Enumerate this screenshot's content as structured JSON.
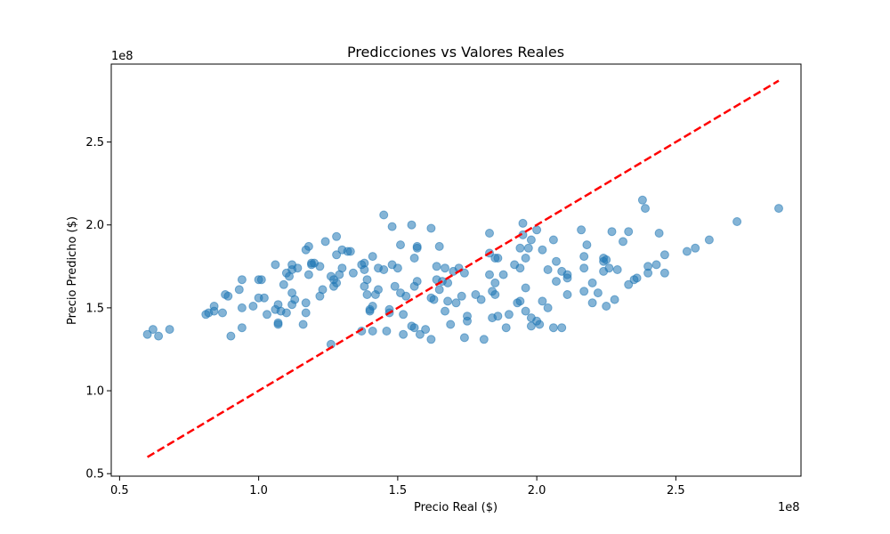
{
  "chart_data": {
    "type": "scatter",
    "title": "Predicciones vs Valores Reales",
    "xlabel": "Precio Real ($)",
    "ylabel": "Precio Predicho ($)",
    "x_offset_label": "1e8",
    "y_offset_label": "1e8",
    "xlim": [
      0.47,
      2.95
    ],
    "ylim": [
      0.485,
      2.97
    ],
    "xticks": [
      0.5,
      1.0,
      1.5,
      2.0,
      2.5
    ],
    "xtick_labels": [
      "0.5",
      "1.0",
      "1.5",
      "2.0",
      "2.5"
    ],
    "yticks": [
      0.5,
      1.0,
      1.5,
      2.0,
      2.5
    ],
    "ytick_labels": [
      "0.5",
      "1.0",
      "1.5",
      "2.0",
      "2.5"
    ],
    "grid": false,
    "legend": "none",
    "point_color": "#1f77b4",
    "line_color": "#ff0000",
    "reference_line": {
      "x": [
        0.6,
        2.87
      ],
      "y": [
        0.6,
        2.87
      ],
      "style": "dashed"
    },
    "points": [
      [
        0.6,
        1.34
      ],
      [
        0.62,
        1.37
      ],
      [
        0.64,
        1.33
      ],
      [
        0.68,
        1.37
      ],
      [
        0.81,
        1.46
      ],
      [
        0.82,
        1.47
      ],
      [
        0.84,
        1.48
      ],
      [
        0.84,
        1.51
      ],
      [
        0.87,
        1.47
      ],
      [
        0.88,
        1.58
      ],
      [
        0.89,
        1.57
      ],
      [
        0.9,
        1.33
      ],
      [
        0.93,
        1.61
      ],
      [
        0.94,
        1.67
      ],
      [
        0.94,
        1.5
      ],
      [
        0.94,
        1.38
      ],
      [
        0.98,
        1.51
      ],
      [
        1.0,
        1.67
      ],
      [
        1.0,
        1.56
      ],
      [
        1.01,
        1.67
      ],
      [
        1.02,
        1.56
      ],
      [
        1.03,
        1.46
      ],
      [
        1.06,
        1.76
      ],
      [
        1.06,
        1.49
      ],
      [
        1.07,
        1.41
      ],
      [
        1.07,
        1.4
      ],
      [
        1.07,
        1.52
      ],
      [
        1.08,
        1.48
      ],
      [
        1.09,
        1.64
      ],
      [
        1.1,
        1.71
      ],
      [
        1.1,
        1.47
      ],
      [
        1.11,
        1.69
      ],
      [
        1.12,
        1.76
      ],
      [
        1.12,
        1.73
      ],
      [
        1.12,
        1.52
      ],
      [
        1.12,
        1.59
      ],
      [
        1.13,
        1.55
      ],
      [
        1.14,
        1.74
      ],
      [
        1.16,
        1.4
      ],
      [
        1.17,
        1.85
      ],
      [
        1.17,
        1.47
      ],
      [
        1.17,
        1.53
      ],
      [
        1.18,
        1.87
      ],
      [
        1.18,
        1.7
      ],
      [
        1.19,
        1.77
      ],
      [
        1.19,
        1.76
      ],
      [
        1.2,
        1.77
      ],
      [
        1.22,
        1.75
      ],
      [
        1.22,
        1.57
      ],
      [
        1.23,
        1.61
      ],
      [
        1.24,
        1.9
      ],
      [
        1.26,
        1.28
      ],
      [
        1.26,
        1.69
      ],
      [
        1.27,
        1.63
      ],
      [
        1.27,
        1.67
      ],
      [
        1.28,
        1.93
      ],
      [
        1.28,
        1.82
      ],
      [
        1.28,
        1.65
      ],
      [
        1.29,
        1.7
      ],
      [
        1.3,
        1.85
      ],
      [
        1.3,
        1.74
      ],
      [
        1.32,
        1.84
      ],
      [
        1.33,
        1.84
      ],
      [
        1.34,
        1.71
      ],
      [
        1.37,
        1.36
      ],
      [
        1.37,
        1.76
      ],
      [
        1.38,
        1.77
      ],
      [
        1.38,
        1.63
      ],
      [
        1.38,
        1.73
      ],
      [
        1.39,
        1.67
      ],
      [
        1.39,
        1.58
      ],
      [
        1.4,
        1.49
      ],
      [
        1.4,
        1.48
      ],
      [
        1.41,
        1.81
      ],
      [
        1.41,
        1.51
      ],
      [
        1.41,
        1.36
      ],
      [
        1.42,
        1.58
      ],
      [
        1.43,
        1.74
      ],
      [
        1.43,
        1.61
      ],
      [
        1.45,
        1.73
      ],
      [
        1.45,
        2.06
      ],
      [
        1.46,
        1.36
      ],
      [
        1.47,
        1.47
      ],
      [
        1.47,
        1.49
      ],
      [
        1.48,
        1.99
      ],
      [
        1.48,
        1.76
      ],
      [
        1.49,
        1.63
      ],
      [
        1.5,
        1.74
      ],
      [
        1.51,
        1.88
      ],
      [
        1.51,
        1.59
      ],
      [
        1.52,
        1.46
      ],
      [
        1.52,
        1.34
      ],
      [
        1.53,
        1.57
      ],
      [
        1.55,
        2.0
      ],
      [
        1.55,
        1.39
      ],
      [
        1.56,
        1.63
      ],
      [
        1.56,
        1.38
      ],
      [
        1.56,
        1.8
      ],
      [
        1.57,
        1.86
      ],
      [
        1.57,
        1.87
      ],
      [
        1.57,
        1.66
      ],
      [
        1.58,
        1.34
      ],
      [
        1.6,
        1.37
      ],
      [
        1.62,
        1.98
      ],
      [
        1.62,
        1.56
      ],
      [
        1.62,
        1.31
      ],
      [
        1.63,
        1.55
      ],
      [
        1.64,
        1.75
      ],
      [
        1.64,
        1.67
      ],
      [
        1.65,
        1.87
      ],
      [
        1.65,
        1.61
      ],
      [
        1.66,
        1.66
      ],
      [
        1.67,
        1.74
      ],
      [
        1.67,
        1.48
      ],
      [
        1.68,
        1.54
      ],
      [
        1.68,
        1.65
      ],
      [
        1.69,
        1.4
      ],
      [
        1.7,
        1.72
      ],
      [
        1.71,
        1.53
      ],
      [
        1.72,
        1.74
      ],
      [
        1.73,
        1.57
      ],
      [
        1.74,
        1.71
      ],
      [
        1.74,
        1.32
      ],
      [
        1.75,
        1.42
      ],
      [
        1.75,
        1.45
      ],
      [
        1.78,
        1.58
      ],
      [
        1.8,
        1.55
      ],
      [
        1.81,
        1.31
      ],
      [
        1.83,
        1.95
      ],
      [
        1.83,
        1.83
      ],
      [
        1.83,
        1.7
      ],
      [
        1.84,
        1.6
      ],
      [
        1.84,
        1.44
      ],
      [
        1.85,
        1.8
      ],
      [
        1.85,
        1.65
      ],
      [
        1.85,
        1.58
      ],
      [
        1.86,
        1.8
      ],
      [
        1.86,
        1.45
      ],
      [
        1.88,
        1.7
      ],
      [
        1.89,
        1.38
      ],
      [
        1.9,
        1.46
      ],
      [
        1.92,
        1.76
      ],
      [
        1.93,
        1.53
      ],
      [
        1.94,
        1.54
      ],
      [
        1.94,
        1.74
      ],
      [
        1.94,
        1.86
      ],
      [
        1.95,
        2.01
      ],
      [
        1.95,
        1.94
      ],
      [
        1.96,
        1.8
      ],
      [
        1.96,
        1.48
      ],
      [
        1.96,
        1.62
      ],
      [
        1.97,
        1.86
      ],
      [
        1.98,
        1.91
      ],
      [
        1.98,
        1.44
      ],
      [
        1.98,
        1.39
      ],
      [
        2.0,
        1.97
      ],
      [
        2.0,
        1.42
      ],
      [
        2.01,
        1.4
      ],
      [
        2.02,
        1.85
      ],
      [
        2.02,
        1.54
      ],
      [
        2.04,
        1.73
      ],
      [
        2.04,
        1.5
      ],
      [
        2.06,
        1.38
      ],
      [
        2.06,
        1.91
      ],
      [
        2.07,
        1.78
      ],
      [
        2.07,
        1.66
      ],
      [
        2.09,
        1.72
      ],
      [
        2.09,
        1.38
      ],
      [
        2.11,
        1.7
      ],
      [
        2.11,
        1.58
      ],
      [
        2.11,
        1.68
      ],
      [
        2.16,
        1.97
      ],
      [
        2.17,
        1.74
      ],
      [
        2.17,
        1.81
      ],
      [
        2.17,
        1.6
      ],
      [
        2.18,
        1.88
      ],
      [
        2.2,
        1.65
      ],
      [
        2.2,
        1.53
      ],
      [
        2.22,
        1.59
      ],
      [
        2.24,
        1.8
      ],
      [
        2.24,
        1.78
      ],
      [
        2.24,
        1.72
      ],
      [
        2.25,
        1.79
      ],
      [
        2.25,
        1.51
      ],
      [
        2.26,
        1.74
      ],
      [
        2.27,
        1.96
      ],
      [
        2.28,
        1.55
      ],
      [
        2.29,
        1.73
      ],
      [
        2.31,
        1.9
      ],
      [
        2.33,
        1.96
      ],
      [
        2.33,
        1.64
      ],
      [
        2.35,
        1.67
      ],
      [
        2.36,
        1.68
      ],
      [
        2.38,
        2.15
      ],
      [
        2.39,
        2.1
      ],
      [
        2.4,
        1.75
      ],
      [
        2.4,
        1.71
      ],
      [
        2.43,
        1.76
      ],
      [
        2.44,
        1.95
      ],
      [
        2.46,
        1.82
      ],
      [
        2.46,
        1.71
      ],
      [
        2.54,
        1.84
      ],
      [
        2.57,
        1.86
      ],
      [
        2.62,
        1.91
      ],
      [
        2.72,
        2.02
      ],
      [
        2.87,
        2.1
      ]
    ]
  }
}
